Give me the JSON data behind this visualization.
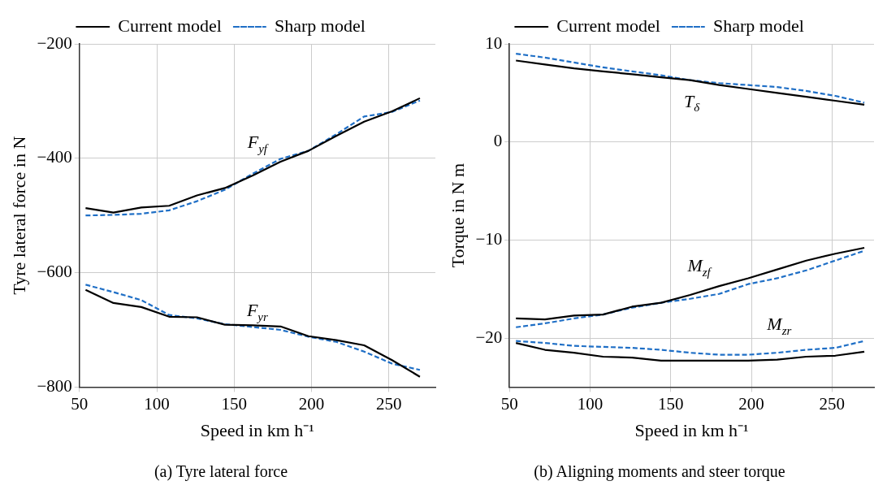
{
  "chart_data": [
    {
      "type": "line",
      "title": "(a) Tyre lateral force",
      "xlabel": "Speed in km h⁻¹",
      "ylabel": "Tyre lateral force in N",
      "x": [
        54,
        72,
        90,
        108,
        126,
        144,
        162,
        180,
        198,
        216,
        234,
        252,
        270
      ],
      "series": [
        {
          "name": "Current model",
          "color": "#000000",
          "line_style": "solid",
          "values": [
            -487,
            -495,
            -486,
            -483,
            -465,
            -452,
            -430,
            -406,
            -387,
            -361,
            -336,
            -318,
            -295
          ]
        },
        {
          "name": "Sharp model",
          "color": "#1f6fc6",
          "line_style": "dashed",
          "values": [
            -500,
            -499,
            -497,
            -491,
            -475,
            -455,
            -427,
            -401,
            -387,
            -358,
            -327,
            -319,
            -299
          ]
        },
        {
          "color": "#000000",
          "line_style": "solid",
          "values": [
            -630,
            -653,
            -660,
            -677,
            -678,
            -691,
            -692,
            -694,
            -711,
            -718,
            -727,
            -753,
            -782
          ]
        },
        {
          "color": "#1f6fc6",
          "line_style": "dashed",
          "values": [
            -621,
            -634,
            -648,
            -674,
            -680,
            -690,
            -695,
            -700,
            -712,
            -721,
            -738,
            -759,
            -770
          ]
        }
      ],
      "annotations": [
        "F$_{yf}$",
        "F$_{yr}$"
      ],
      "xlim": [
        50,
        280
      ],
      "ylim": [
        -800,
        -200
      ],
      "xticks": [
        50,
        100,
        150,
        200,
        250
      ],
      "yticks": [
        -800,
        -600,
        -400,
        -200
      ],
      "grid": true,
      "legend": "top",
      "marker": "none"
    },
    {
      "type": "line",
      "title": "(b) Aligning moments and steer torque",
      "xlabel": "Speed in km h⁻¹",
      "ylabel": "Torque in N m",
      "x": [
        54,
        72,
        90,
        108,
        126,
        144,
        162,
        180,
        198,
        216,
        234,
        252,
        270
      ],
      "series": [
        {
          "name": "Current model",
          "color": "#000000",
          "line_style": "solid",
          "values": [
            8.3,
            7.9,
            7.5,
            7.2,
            6.9,
            6.6,
            6.3,
            5.8,
            5.4,
            5.0,
            4.6,
            4.2,
            3.8
          ]
        },
        {
          "name": "Sharp model",
          "color": "#1f6fc6",
          "line_style": "dashed",
          "values": [
            9.0,
            8.6,
            8.1,
            7.6,
            7.2,
            6.8,
            6.3,
            6.0,
            5.8,
            5.6,
            5.2,
            4.7,
            4.0
          ]
        },
        {
          "color": "#000000",
          "line_style": "solid",
          "values": [
            -18.0,
            -18.1,
            -17.7,
            -17.6,
            -16.8,
            -16.4,
            -15.6,
            -14.7,
            -13.9,
            -13.0,
            -12.1,
            -11.4,
            -10.8
          ]
        },
        {
          "color": "#1f6fc6",
          "line_style": "dashed",
          "values": [
            -18.9,
            -18.5,
            -18.0,
            -17.6,
            -16.9,
            -16.4,
            -16.0,
            -15.5,
            -14.5,
            -13.9,
            -13.1,
            -12.1,
            -11.1
          ]
        },
        {
          "color": "#000000",
          "line_style": "solid",
          "values": [
            -20.5,
            -21.2,
            -21.5,
            -21.9,
            -22.0,
            -22.3,
            -22.3,
            -22.3,
            -22.3,
            -22.2,
            -21.9,
            -21.8,
            -21.4
          ]
        },
        {
          "color": "#1f6fc6",
          "line_style": "dashed",
          "values": [
            -20.3,
            -20.5,
            -20.8,
            -20.9,
            -21.0,
            -21.2,
            -21.5,
            -21.7,
            -21.7,
            -21.5,
            -21.2,
            -21.0,
            -20.3
          ]
        }
      ],
      "annotations": [
        "T$_{δ}$",
        "M$_{zf}$",
        "M$_{zr}$"
      ],
      "xlim": [
        50,
        276
      ],
      "ylim": [
        -25,
        10
      ],
      "xticks": [
        50,
        100,
        150,
        200,
        250
      ],
      "yticks": [
        -20,
        -10,
        0,
        10
      ],
      "grid": true,
      "legend": "top",
      "marker": "none"
    }
  ]
}
